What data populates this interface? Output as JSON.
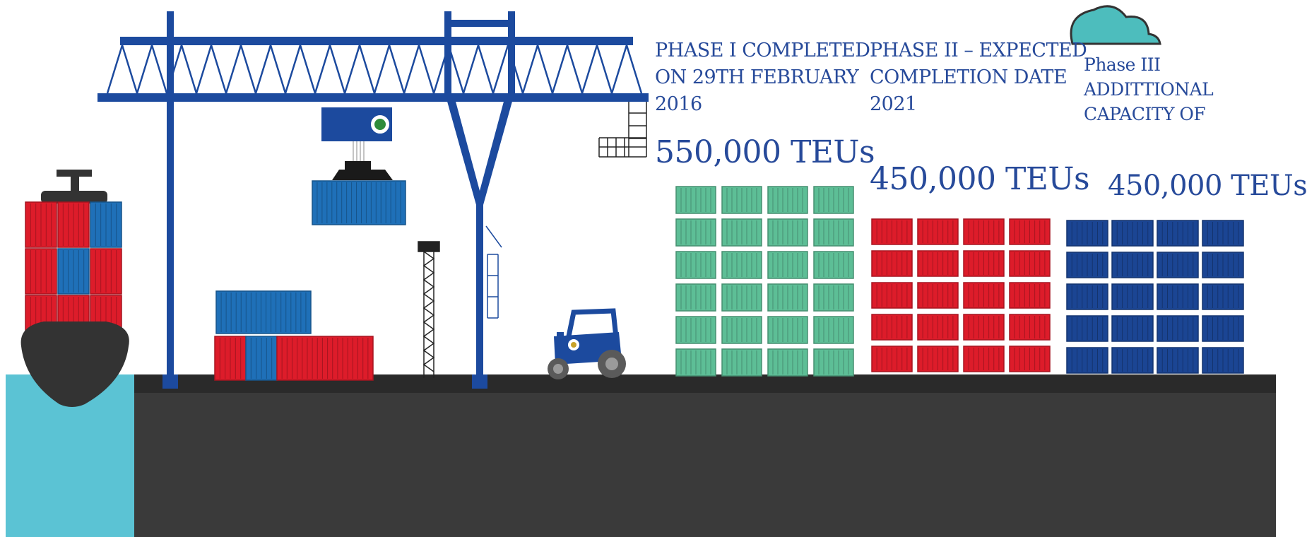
{
  "phases": [
    {
      "lines": [
        "PHASE I COMPLETED",
        "ON 29TH FEBRUARY",
        "2016"
      ],
      "capacity": "550,000 TEUs",
      "container_color": "#5dbe96"
    },
    {
      "lines": [
        "PHASE II – EXPECTED",
        "COMPLETION DATE",
        "2021"
      ],
      "capacity": "450,000 TEUs",
      "container_color": "#dd1c2a"
    },
    {
      "lines": [
        "Phase III",
        "ADDITTIONAL",
        "CAPACITY OF"
      ],
      "capacity": "450,000 TEUs",
      "container_color": "#1b4593"
    }
  ],
  "colors": {
    "text": "#274a9a",
    "crane": "#1c4a9e",
    "quay": "#3a3a3a",
    "water": "#5bc3d4",
    "cloud": "#4dbdbd",
    "hull": "#333333",
    "container_red": "#dd1c2a",
    "container_blue": "#1f70b8"
  },
  "icons": [
    "gantry-crane-icon",
    "container-ship-icon",
    "tractor-icon",
    "light-tower-icon",
    "cloud-icon",
    "port-seal-icon"
  ]
}
